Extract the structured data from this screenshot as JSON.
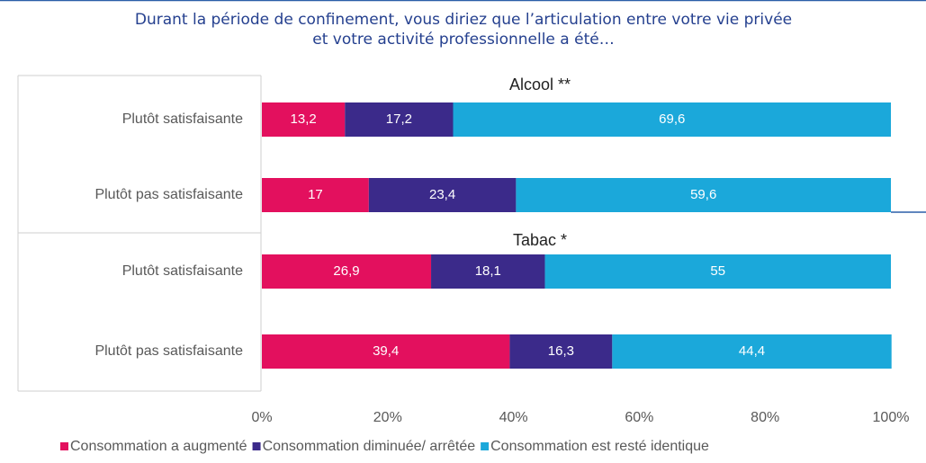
{
  "chart_data": {
    "type": "stacked-bar-horizontal",
    "title": "Durant la période de confinement, vous diriez que l’articulation entre votre vie privée",
    "subtitle": "et votre activité professionnelle a été…",
    "group_labels": [
      "Alcool **",
      "Tabac *"
    ],
    "categories": [
      "Plutôt satisfaisante",
      "Plutôt pas satisfaisante",
      "Plutôt satisfaisante",
      "Plutôt pas satisfaisante"
    ],
    "series": [
      {
        "name": "Consommation a augmenté",
        "color": "#e3105e",
        "values": [
          13.2,
          17,
          26.9,
          39.4
        ],
        "value_labels": [
          "13,2",
          "17",
          "26,9",
          "39,4"
        ]
      },
      {
        "name": "Consommation diminuée/ arrêtée",
        "color": "#3b2a8a",
        "values": [
          17.2,
          23.4,
          18.1,
          16.3
        ],
        "value_labels": [
          "17,2",
          "23,4",
          "18,1",
          "16,3"
        ]
      },
      {
        "name": "Consommation est resté identique",
        "color": "#1ba8da",
        "values": [
          69.6,
          59.6,
          55,
          44.4
        ],
        "value_labels": [
          "69,6",
          "59,6",
          "55",
          "44,4"
        ]
      }
    ],
    "xlim": [
      0,
      100
    ],
    "xticks": [
      {
        "value": 0,
        "label": "0%"
      },
      {
        "value": 20,
        "label": "20%"
      },
      {
        "value": 40,
        "label": "40%"
      },
      {
        "value": 60,
        "label": "60%"
      },
      {
        "value": 80,
        "label": "80%"
      },
      {
        "value": 100,
        "label": "100%"
      }
    ]
  }
}
